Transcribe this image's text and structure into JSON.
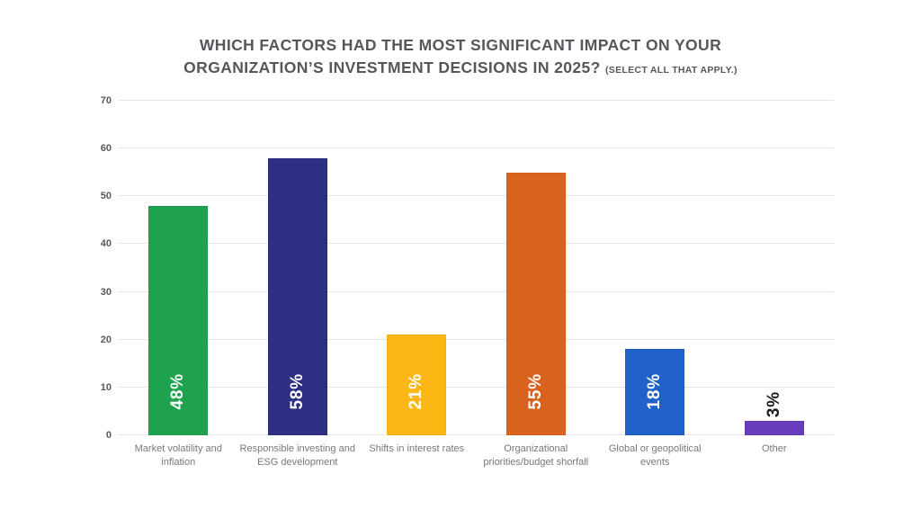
{
  "title": {
    "lines": [
      "WHICH FACTORS HAD THE MOST SIGNIFICANT IMPACT ON YOUR",
      "ORGANIZATION’S INVESTMENT DECISIONS IN 2025?"
    ],
    "note": "(SELECT ALL THAT APPLY.)"
  },
  "chart_data": {
    "type": "bar",
    "title": "WHICH FACTORS HAD THE MOST SIGNIFICANT IMPACT ON YOUR ORGANIZATION’S INVESTMENT DECISIONS IN 2025?",
    "subtitle": "(SELECT ALL THAT APPLY.)",
    "categories": [
      "Market volatility and inflation",
      "Responsible investing and ESG development",
      "Shifts in interest rates",
      "Organizational priorities/budget shorfall",
      "Global or geopolitical events",
      "Other"
    ],
    "values": [
      48,
      58,
      21,
      55,
      18,
      3
    ],
    "value_labels": [
      "48%",
      "58%",
      "21%",
      "55%",
      "18%",
      "3%"
    ],
    "bar_colors": [
      "#1EA24E",
      "#2E2F84",
      "#FDB714",
      "#D8621E",
      "#2062C9",
      "#693CBE"
    ],
    "bar_border_colors": [
      "#15914268",
      "#26287568",
      "#DFA00F68",
      "#C1531A68",
      "#1A53AC68",
      "#5C34A868"
    ],
    "label_placement": [
      "inside",
      "inside",
      "inside",
      "inside",
      "inside",
      "outside"
    ],
    "label_colors": [
      "#ffffff",
      "#ffffff",
      "#ffffff",
      "#ffffff",
      "#ffffff",
      "#1a1a1a"
    ],
    "xlabel": "",
    "ylabel": "",
    "ylim": [
      0,
      70
    ],
    "yticks": [
      0,
      10,
      20,
      30,
      40,
      50,
      60,
      70
    ],
    "grid": true,
    "gridline_color": "#E4E4E4",
    "tick_label_color": "#58595B",
    "category_label_color": "#77787B",
    "legend": "none"
  }
}
